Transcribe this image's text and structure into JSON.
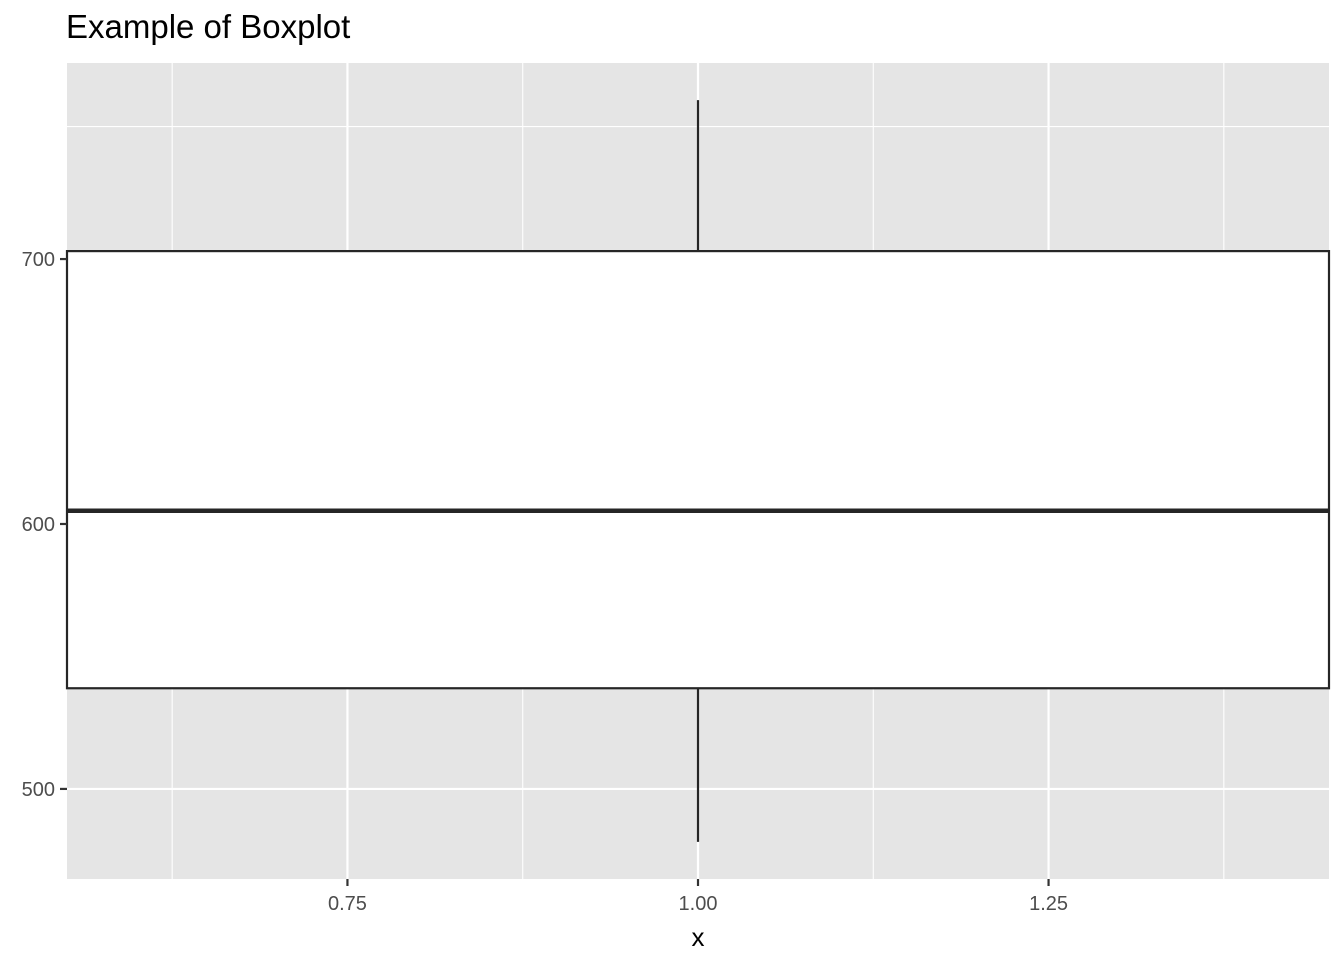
{
  "chart_data": {
    "type": "boxplot",
    "title": "Example of Boxplot",
    "xlabel": "x",
    "ylabel": "",
    "xlim": [
      0.55,
      1.45
    ],
    "ylim": [
      466,
      774
    ],
    "x_ticks": [
      0.75,
      1.0,
      1.25
    ],
    "x_tick_labels": [
      "0.75",
      "1.00",
      "1.25"
    ],
    "y_ticks": [
      500,
      600,
      700
    ],
    "y_tick_labels": [
      "500",
      "600",
      "700"
    ],
    "grid": true,
    "boxes": [
      {
        "x": 1.0,
        "width": 0.9,
        "whisker_low": 480,
        "q1": 538,
        "median": 605,
        "q3": 703,
        "whisker_high": 760
      }
    ]
  },
  "colors": {
    "panel_background": "#e5e5e5",
    "grid": "#ffffff",
    "box_fill": "#ffffff",
    "box_stroke": "#262626",
    "tick_text": "#4d4d4d",
    "tick_mark": "#333333"
  }
}
